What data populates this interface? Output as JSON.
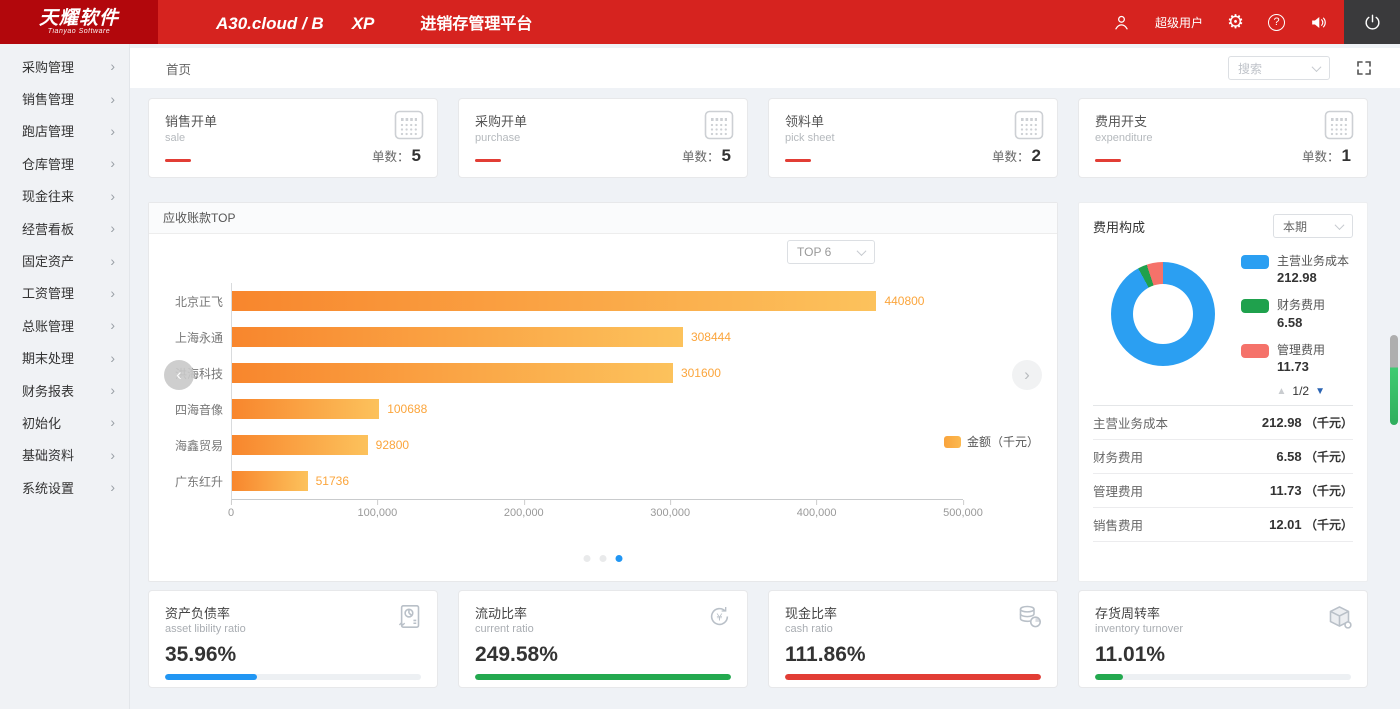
{
  "header": {
    "logo_title": "天耀软件",
    "logo_subtitle": "Tianyao Software",
    "product_name": "A30.cloud / B",
    "edition": "XP",
    "platform_title": "进销存管理平台",
    "username": "超级用户",
    "colors": {
      "header_red": "#d6231f",
      "logo_red": "#b2070c",
      "power_bg": "#3a3a3c"
    }
  },
  "sidebar": {
    "items": [
      {
        "label": "采购管理"
      },
      {
        "label": "销售管理"
      },
      {
        "label": "跑店管理"
      },
      {
        "label": "仓库管理"
      },
      {
        "label": "现金往来"
      },
      {
        "label": "经营看板"
      },
      {
        "label": "固定资产"
      },
      {
        "label": "工资管理"
      },
      {
        "label": "总账管理"
      },
      {
        "label": "期末处理"
      },
      {
        "label": "财务报表"
      },
      {
        "label": "初始化"
      },
      {
        "label": "基础资料"
      },
      {
        "label": "系统设置"
      }
    ]
  },
  "toolbar": {
    "breadcrumb_home": "首页",
    "search_placeholder": "搜索"
  },
  "stat_cards": [
    {
      "title": "销售开单",
      "subtitle": "sale",
      "count_label": "单数：",
      "count": "5",
      "icon": "calculator-icon"
    },
    {
      "title": "采购开单",
      "subtitle": "purchase",
      "count_label": "单数：",
      "count": "5",
      "icon": "calculator-icon"
    },
    {
      "title": "领料单",
      "subtitle": "pick sheet",
      "count_label": "单数：",
      "count": "2",
      "icon": "calculator-icon"
    },
    {
      "title": "费用开支",
      "subtitle": "expenditure",
      "count_label": "单数：",
      "count": "1",
      "icon": "calculator-icon"
    }
  ],
  "receivables_panel": {
    "title": "应收账款TOP",
    "top_select_value": "TOP 6",
    "legend_label": "金额（千元）",
    "carousel_page_count": 3,
    "carousel_active_index": 2
  },
  "expense_panel": {
    "title": "费用构成",
    "period_select_value": "本期",
    "pager": "1/2",
    "legend": [
      {
        "label": "主营业务成本",
        "value": "212.98",
        "color": "#2b9ff2"
      },
      {
        "label": "财务费用",
        "value": "6.58",
        "color": "#1fa14d"
      },
      {
        "label": "管理费用",
        "value": "11.73",
        "color": "#f5726a"
      }
    ],
    "rows": [
      {
        "label": "主营业务成本",
        "value": "212.98",
        "unit": "（千元）"
      },
      {
        "label": "财务费用",
        "value": "6.58",
        "unit": "（千元）"
      },
      {
        "label": "管理费用",
        "value": "11.73",
        "unit": "（千元）"
      },
      {
        "label": "销售费用",
        "value": "12.01",
        "unit": "（千元）"
      }
    ]
  },
  "ratio_cards": [
    {
      "title": "资产负债率",
      "subtitle": "asset libility ratio",
      "value": "35.96%",
      "percent": 35.96,
      "color": "#2196f3",
      "icon": "report-icon"
    },
    {
      "title": "流动比率",
      "subtitle": "current ratio",
      "value": "249.58%",
      "percent": 249.58,
      "color": "#23a94f",
      "icon": "refresh-yen-icon"
    },
    {
      "title": "现金比率",
      "subtitle": "cash ratio",
      "value": "111.86%",
      "percent": 111.86,
      "color": "#e23d35",
      "icon": "coins-icon"
    },
    {
      "title": "存货周转率",
      "subtitle": "inventory turnover",
      "value": "11.01%",
      "percent": 11.01,
      "color": "#23a94f",
      "icon": "box-icon"
    }
  ],
  "chart_data": [
    {
      "type": "bar",
      "orientation": "horizontal",
      "title": "应收账款TOP",
      "categories": [
        "北京正飞",
        "上海永通",
        "洪海科技",
        "四海音像",
        "海鑫贸易",
        "广东红升"
      ],
      "values": [
        440800,
        308444,
        301600,
        100688,
        92800,
        51736
      ],
      "xlim": [
        0,
        500000
      ],
      "xticks": [
        "0",
        "100,000",
        "200,000",
        "300,000",
        "400,000",
        "500,000"
      ],
      "legend": [
        "金额（千元）"
      ],
      "legend_position": "right",
      "bar_color_gradient": [
        "#f8862d",
        "#fcc25c"
      ],
      "value_label_color": "#fba53c",
      "grid": false
    },
    {
      "type": "pie",
      "donut": true,
      "title": "费用构成",
      "labels": [
        "主营业务成本",
        "财务费用",
        "管理费用"
      ],
      "values": [
        212.98,
        6.58,
        11.73
      ],
      "colors": [
        "#2b9ff2",
        "#1fa14d",
        "#f5726a"
      ],
      "legend_position": "right"
    }
  ]
}
